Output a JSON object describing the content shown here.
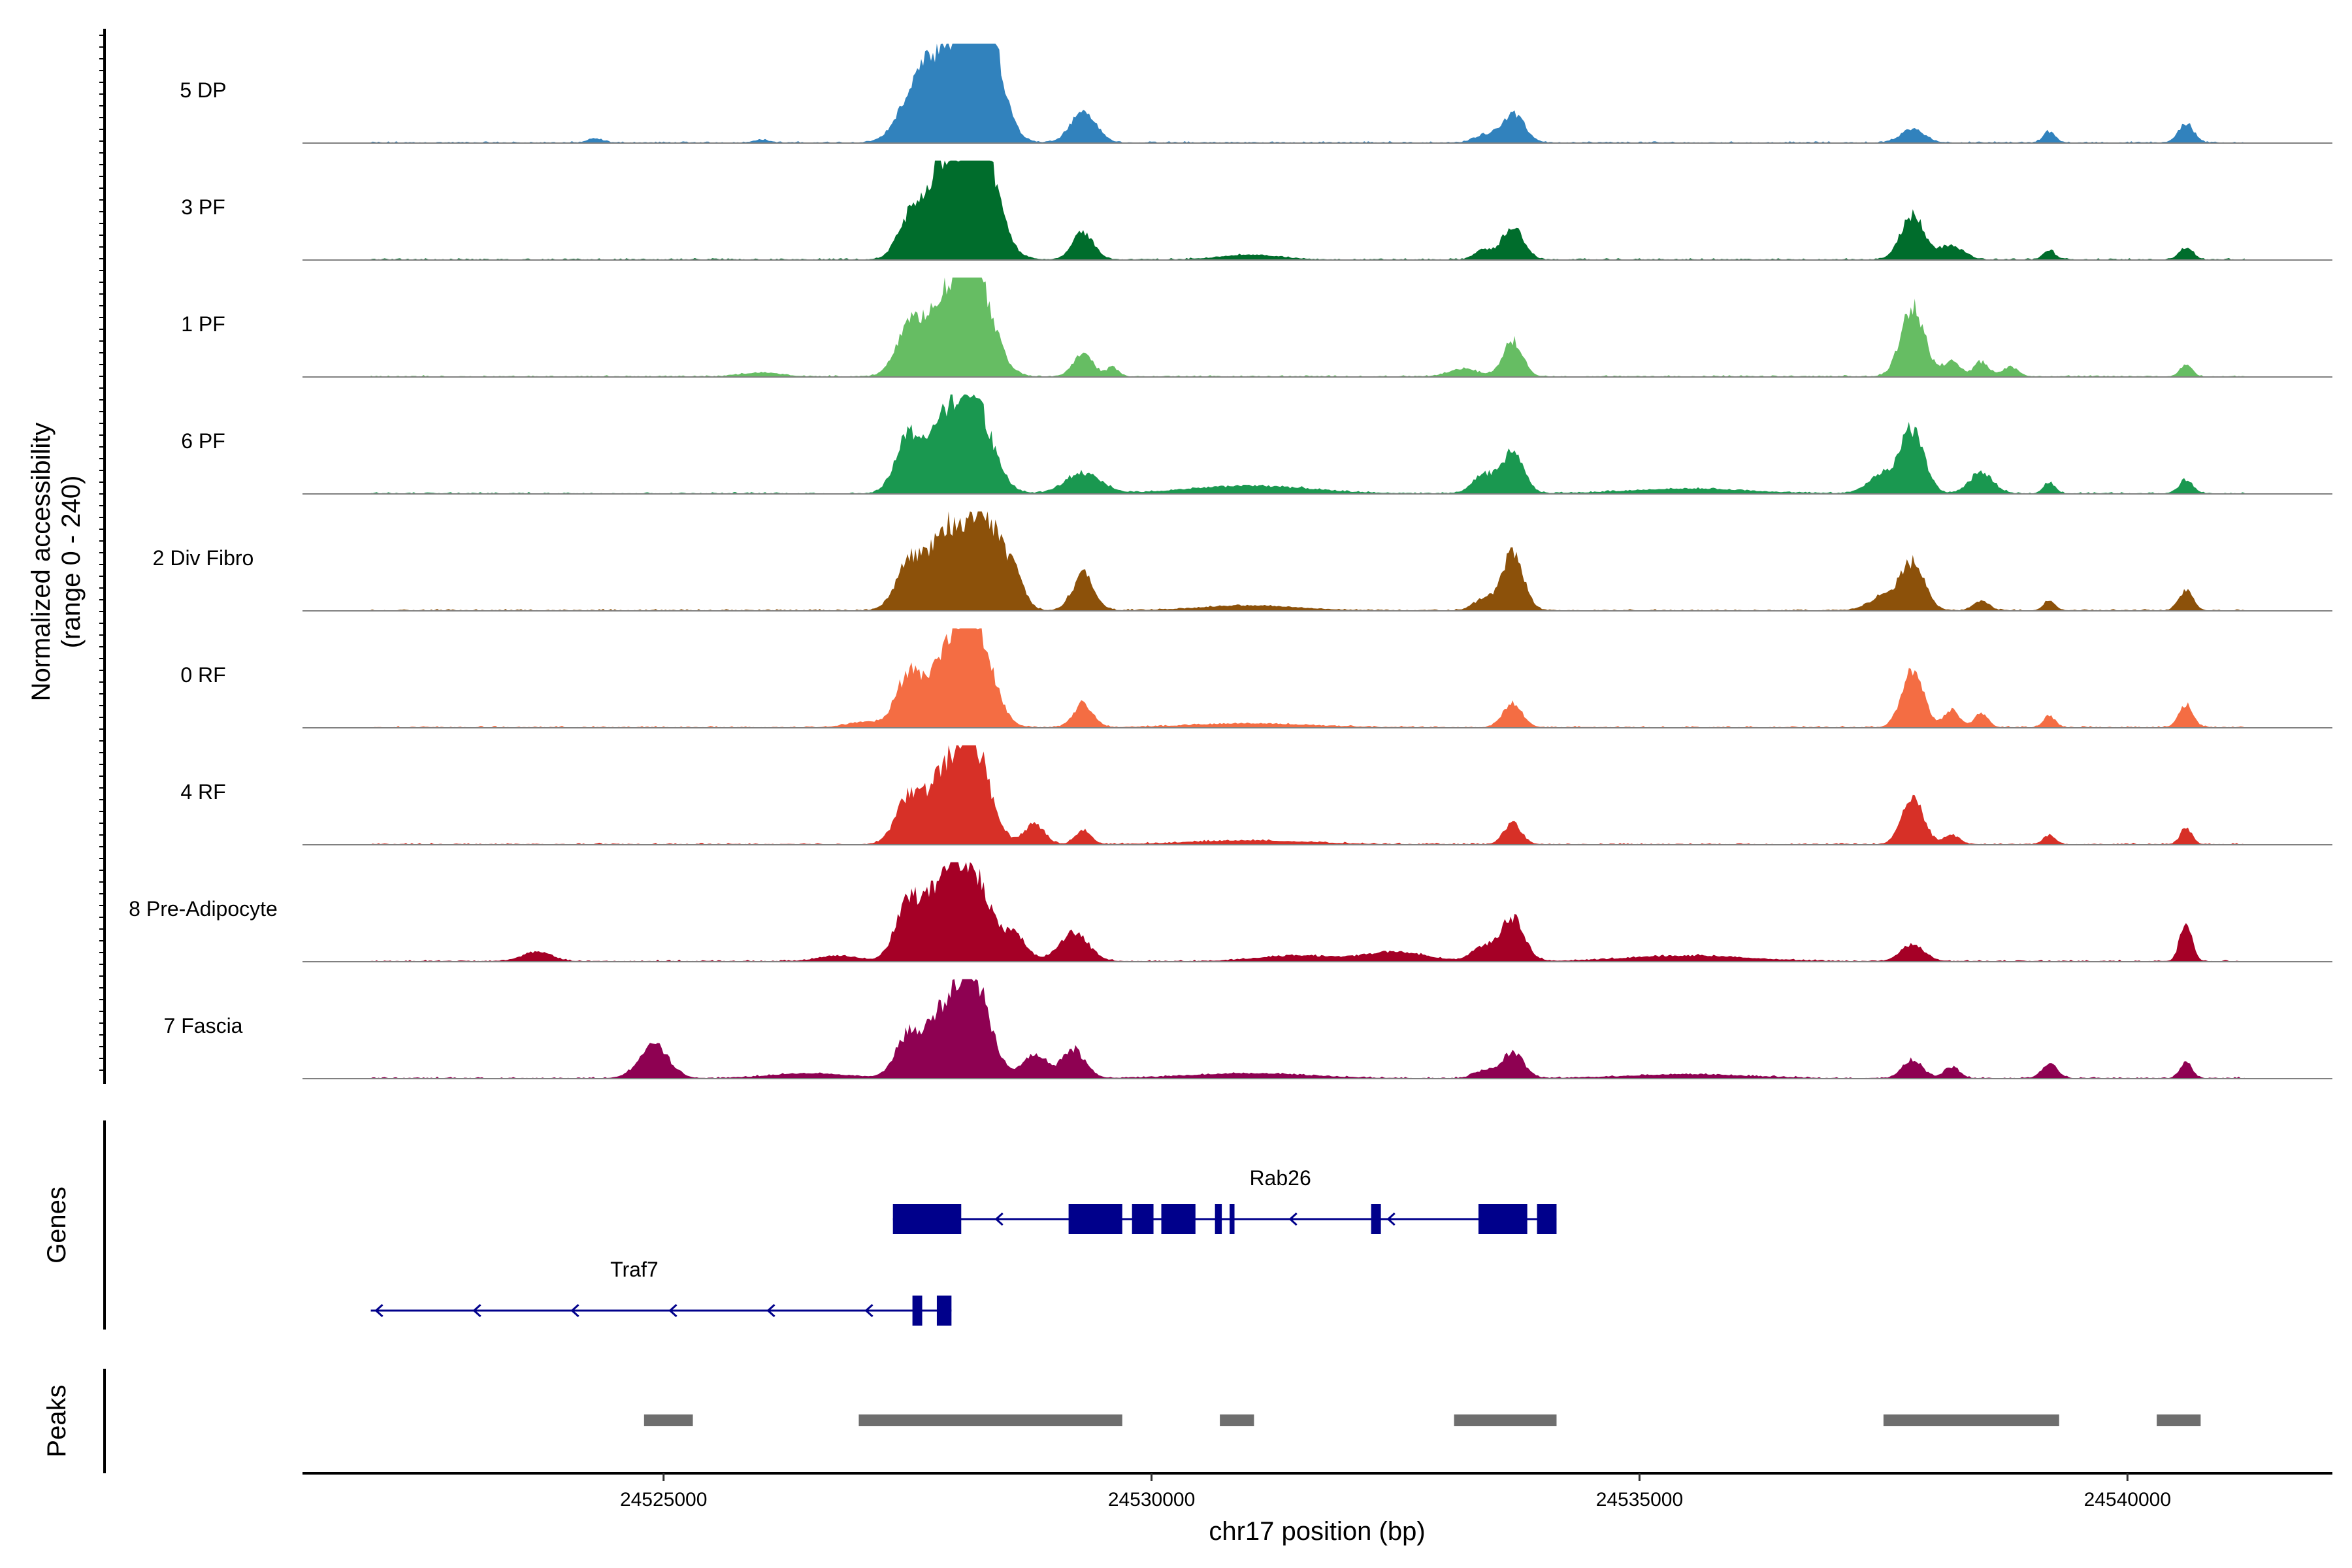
{
  "chart_data": {
    "type": "area",
    "title": "",
    "xlabel": "chr17 position (bp)",
    "ylabel_line1": "Normalized accessibility",
    "ylabel_line2": "(range 0 - 240)",
    "xlim": [
      24521300,
      24542100
    ],
    "ylim": [
      0,
      240
    ],
    "x_ticks": [
      24525000,
      24530000,
      24535000,
      24540000
    ],
    "x_tick_labels": [
      "24525000",
      "24530000",
      "24535000",
      "24540000"
    ],
    "track_range": [
      24522000,
      24541200
    ],
    "series": [
      {
        "name": "5 DP",
        "color": "#3182bd",
        "peaks": [
          [
            24527600,
            0.45,
            180
          ],
          [
            24528000,
            0.92,
            260
          ],
          [
            24528300,
            1.0,
            160
          ],
          [
            24529300,
            0.33,
            130
          ],
          [
            24533700,
            0.3,
            120
          ],
          [
            24533400,
            0.08,
            100
          ],
          [
            24537800,
            0.14,
            120
          ],
          [
            24539200,
            0.12,
            60
          ],
          [
            24540600,
            0.2,
            80
          ],
          [
            24524300,
            0.04,
            80
          ],
          [
            24526000,
            0.03,
            80
          ]
        ]
      },
      {
        "name": "3 PF",
        "color": "#006d2c",
        "peaks": [
          [
            24527500,
            0.32,
            120
          ],
          [
            24527800,
            0.55,
            170
          ],
          [
            24528100,
            0.95,
            240
          ],
          [
            24528300,
            0.55,
            140
          ],
          [
            24529300,
            0.28,
            110
          ],
          [
            24533700,
            0.35,
            110
          ],
          [
            24533400,
            0.1,
            90
          ],
          [
            24537800,
            0.48,
            120
          ],
          [
            24538200,
            0.15,
            120
          ],
          [
            24539200,
            0.1,
            60
          ],
          [
            24540600,
            0.13,
            70
          ],
          [
            24531000,
            0.05,
            300
          ]
        ]
      },
      {
        "name": "1 PF",
        "color": "#66bd63",
        "peaks": [
          [
            24527500,
            0.42,
            130
          ],
          [
            24527900,
            0.75,
            220
          ],
          [
            24528200,
            0.9,
            180
          ],
          [
            24529300,
            0.25,
            100
          ],
          [
            24529600,
            0.1,
            60
          ],
          [
            24533700,
            0.38,
            100
          ],
          [
            24533200,
            0.08,
            150
          ],
          [
            24537800,
            0.75,
            120
          ],
          [
            24538200,
            0.18,
            80
          ],
          [
            24538500,
            0.15,
            80
          ],
          [
            24538800,
            0.1,
            80
          ],
          [
            24540600,
            0.13,
            60
          ],
          [
            24526000,
            0.04,
            200
          ]
        ]
      },
      {
        "name": "6 PF",
        "color": "#1a9850",
        "peaks": [
          [
            24527500,
            0.55,
            130
          ],
          [
            24527900,
            0.7,
            200
          ],
          [
            24528200,
            0.8,
            180
          ],
          [
            24529300,
            0.22,
            180
          ],
          [
            24533700,
            0.45,
            110
          ],
          [
            24533400,
            0.2,
            110
          ],
          [
            24537800,
            0.65,
            120
          ],
          [
            24537500,
            0.2,
            150
          ],
          [
            24538500,
            0.22,
            120
          ],
          [
            24539200,
            0.12,
            60
          ],
          [
            24540600,
            0.15,
            70
          ],
          [
            24531000,
            0.08,
            600
          ],
          [
            24535500,
            0.05,
            600
          ]
        ]
      },
      {
        "name": "2 Div Fibro",
        "color": "#8c510a",
        "peaks": [
          [
            24527500,
            0.42,
            130
          ],
          [
            24527900,
            0.85,
            200
          ],
          [
            24528300,
            0.95,
            160
          ],
          [
            24528600,
            0.3,
            100
          ],
          [
            24529300,
            0.38,
            110
          ],
          [
            24533700,
            0.6,
            110
          ],
          [
            24533400,
            0.12,
            100
          ],
          [
            24537800,
            0.5,
            120
          ],
          [
            24537500,
            0.15,
            150
          ],
          [
            24538500,
            0.1,
            80
          ],
          [
            24539200,
            0.1,
            60
          ],
          [
            24540600,
            0.22,
            70
          ],
          [
            24531000,
            0.05,
            500
          ]
        ]
      },
      {
        "name": "0 RF",
        "color": "#f46d43",
        "peaks": [
          [
            24527500,
            0.48,
            120
          ],
          [
            24527900,
            0.7,
            200
          ],
          [
            24528200,
            0.95,
            170
          ],
          [
            24529300,
            0.25,
            100
          ],
          [
            24533700,
            0.25,
            100
          ],
          [
            24537800,
            0.62,
            110
          ],
          [
            24538200,
            0.18,
            80
          ],
          [
            24538500,
            0.15,
            70
          ],
          [
            24539200,
            0.12,
            60
          ],
          [
            24540600,
            0.25,
            70
          ],
          [
            24527100,
            0.06,
            200
          ],
          [
            24531000,
            0.04,
            600
          ]
        ]
      },
      {
        "name": "4 RF",
        "color": "#d73027",
        "peaks": [
          [
            24527500,
            0.42,
            130
          ],
          [
            24527900,
            0.75,
            200
          ],
          [
            24528200,
            0.82,
            160
          ],
          [
            24528800,
            0.22,
            100
          ],
          [
            24529300,
            0.15,
            80
          ],
          [
            24533700,
            0.22,
            90
          ],
          [
            24537800,
            0.5,
            110
          ],
          [
            24538200,
            0.1,
            80
          ],
          [
            24539200,
            0.1,
            60
          ],
          [
            24540600,
            0.17,
            60
          ],
          [
            24531000,
            0.04,
            600
          ]
        ]
      },
      {
        "name": "8 Pre-Adipocyte",
        "color": "#a50026",
        "peaks": [
          [
            24527500,
            0.55,
            130
          ],
          [
            24527900,
            0.85,
            200
          ],
          [
            24528200,
            0.7,
            170
          ],
          [
            24528600,
            0.25,
            120
          ],
          [
            24529200,
            0.3,
            150
          ],
          [
            24533700,
            0.45,
            120
          ],
          [
            24533400,
            0.15,
            120
          ],
          [
            24537800,
            0.18,
            120
          ],
          [
            24540600,
            0.45,
            60
          ],
          [
            24523700,
            0.1,
            150
          ],
          [
            24526800,
            0.06,
            200
          ],
          [
            24531500,
            0.06,
            400
          ],
          [
            24532500,
            0.1,
            300
          ],
          [
            24535500,
            0.06,
            600
          ]
        ]
      },
      {
        "name": "7 Fascia",
        "color": "#8e0152",
        "peaks": [
          [
            24524900,
            0.35,
            150
          ],
          [
            24527500,
            0.4,
            130
          ],
          [
            24527900,
            0.7,
            200
          ],
          [
            24528200,
            0.85,
            160
          ],
          [
            24528800,
            0.25,
            120
          ],
          [
            24529200,
            0.3,
            120
          ],
          [
            24526500,
            0.05,
            400
          ],
          [
            24533700,
            0.28,
            110
          ],
          [
            24533400,
            0.08,
            100
          ],
          [
            24537800,
            0.2,
            100
          ],
          [
            24538200,
            0.12,
            80
          ],
          [
            24539200,
            0.15,
            80
          ],
          [
            24540600,
            0.18,
            60
          ],
          [
            24531000,
            0.05,
            600
          ],
          [
            24535500,
            0.04,
            600
          ]
        ]
      }
    ],
    "genes": {
      "track_label": "Genes",
      "items": [
        {
          "name": "Rab26",
          "strand": "-",
          "start": 24527350,
          "end": 24534150,
          "exons": [
            [
              24527350,
              24528050
            ],
            [
              24529150,
              24529700
            ],
            [
              24529800,
              24530020
            ],
            [
              24530100,
              24530450
            ],
            [
              24530650,
              24530720
            ],
            [
              24530800,
              24530850
            ],
            [
              24532250,
              24532350
            ],
            [
              24533350,
              24533850
            ],
            [
              24533950,
              24534150
            ]
          ]
        },
        {
          "name": "Traf7",
          "strand": "-",
          "start": 24522000,
          "end": 24527950,
          "exons": [
            [
              24527550,
              24527650
            ],
            [
              24527800,
              24527950
            ]
          ]
        }
      ]
    },
    "peaks_track": {
      "track_label": "Peaks",
      "regions": [
        [
          24524800,
          24525300
        ],
        [
          24527000,
          24529700
        ],
        [
          24530700,
          24531050
        ],
        [
          24533100,
          24534150
        ],
        [
          24537500,
          24539300
        ],
        [
          24540300,
          24540750
        ]
      ]
    }
  }
}
